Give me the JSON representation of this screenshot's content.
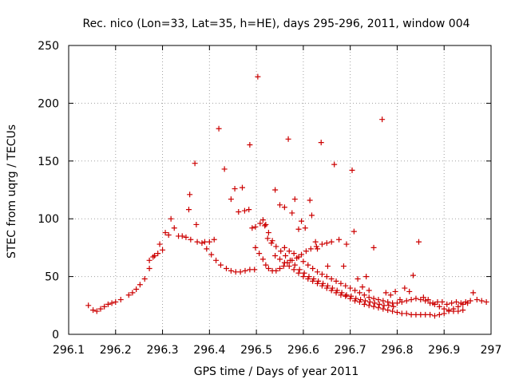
{
  "chart_data": {
    "type": "scatter",
    "title": "Rec. nico (Lon=33, Lat=35, h=HE), days 295-296, 2011, window 004",
    "xlabel": "GPS time / Days of year 2011",
    "ylabel": "STEC from uqrg / TECUs",
    "xlim": [
      296.1,
      297.0
    ],
    "ylim": [
      0,
      250
    ],
    "xticks": [
      "296.1",
      "296.2",
      "296.3",
      "296.4",
      "296.5",
      "296.6",
      "296.7",
      "296.8",
      "296.9",
      "297"
    ],
    "yticks": [
      "0",
      "50",
      "100",
      "150",
      "200",
      "250"
    ],
    "grid": true,
    "marker": "plus",
    "color": "#cc0000",
    "points": [
      [
        296.142,
        25
      ],
      [
        296.152,
        21
      ],
      [
        296.16,
        20
      ],
      [
        296.168,
        22
      ],
      [
        296.176,
        24
      ],
      [
        296.184,
        26
      ],
      [
        296.192,
        27
      ],
      [
        296.2,
        28
      ],
      [
        296.211,
        30
      ],
      [
        296.228,
        34
      ],
      [
        296.236,
        36
      ],
      [
        296.244,
        39
      ],
      [
        296.252,
        43
      ],
      [
        296.262,
        48
      ],
      [
        296.272,
        57
      ],
      [
        296.283,
        68
      ],
      [
        296.294,
        78
      ],
      [
        296.306,
        88
      ],
      [
        296.318,
        100
      ],
      [
        296.272,
        64
      ],
      [
        296.28,
        67
      ],
      [
        296.29,
        70
      ],
      [
        296.3,
        73
      ],
      [
        296.313,
        86
      ],
      [
        296.325,
        92
      ],
      [
        296.334,
        85
      ],
      [
        296.342,
        85
      ],
      [
        296.35,
        84
      ],
      [
        296.356,
        108
      ],
      [
        296.358,
        121
      ],
      [
        296.369,
        148
      ],
      [
        296.372,
        95
      ],
      [
        296.36,
        82
      ],
      [
        296.374,
        80
      ],
      [
        296.384,
        79
      ],
      [
        296.394,
        74
      ],
      [
        296.404,
        69
      ],
      [
        296.414,
        64
      ],
      [
        296.424,
        60
      ],
      [
        296.436,
        57
      ],
      [
        296.446,
        55
      ],
      [
        296.456,
        54
      ],
      [
        296.466,
        54
      ],
      [
        296.476,
        55
      ],
      [
        296.486,
        56
      ],
      [
        296.496,
        56
      ],
      [
        296.39,
        80
      ],
      [
        296.4,
        80
      ],
      [
        296.41,
        82
      ],
      [
        296.42,
        178
      ],
      [
        296.432,
        143
      ],
      [
        296.446,
        117
      ],
      [
        296.454,
        126
      ],
      [
        296.462,
        106
      ],
      [
        296.47,
        127
      ],
      [
        296.475,
        107
      ],
      [
        296.484,
        108
      ],
      [
        296.486,
        164
      ],
      [
        296.491,
        92
      ],
      [
        296.498,
        93
      ],
      [
        296.503,
        223
      ],
      [
        296.508,
        96
      ],
      [
        296.514,
        99
      ],
      [
        296.518,
        94
      ],
      [
        296.524,
        83
      ],
      [
        296.532,
        79
      ],
      [
        296.54,
        125
      ],
      [
        296.55,
        112
      ],
      [
        296.56,
        110
      ],
      [
        296.568,
        169
      ],
      [
        296.576,
        105
      ],
      [
        296.582,
        117
      ],
      [
        296.59,
        91
      ],
      [
        296.596,
        98
      ],
      [
        296.604,
        92
      ],
      [
        296.614,
        116
      ],
      [
        296.618,
        103
      ],
      [
        296.626,
        80
      ],
      [
        296.63,
        74
      ],
      [
        296.638,
        166
      ],
      [
        296.652,
        59
      ],
      [
        296.66,
        80
      ],
      [
        296.666,
        147
      ],
      [
        296.676,
        82
      ],
      [
        296.686,
        59
      ],
      [
        296.692,
        78
      ],
      [
        296.704,
        142
      ],
      [
        296.708,
        89
      ],
      [
        296.716,
        48
      ],
      [
        296.726,
        41
      ],
      [
        296.734,
        50
      ],
      [
        296.74,
        38
      ],
      [
        296.75,
        75
      ],
      [
        296.768,
        186
      ],
      [
        296.776,
        36
      ],
      [
        296.786,
        34
      ],
      [
        296.796,
        37
      ],
      [
        296.806,
        30
      ],
      [
        296.816,
        40
      ],
      [
        296.826,
        37
      ],
      [
        296.834,
        51
      ],
      [
        296.846,
        80
      ],
      [
        296.856,
        32
      ],
      [
        296.866,
        30
      ],
      [
        296.876,
        27
      ],
      [
        296.886,
        28
      ],
      [
        296.896,
        28
      ],
      [
        296.906,
        26
      ],
      [
        296.916,
        27
      ],
      [
        296.926,
        28
      ],
      [
        296.936,
        27
      ],
      [
        296.946,
        28
      ],
      [
        296.956,
        29
      ],
      [
        296.962,
        36
      ],
      [
        296.97,
        30
      ],
      [
        296.98,
        29
      ],
      [
        296.99,
        28
      ],
      [
        296.498,
        75
      ],
      [
        296.506,
        70
      ],
      [
        296.514,
        65
      ],
      [
        296.52,
        60
      ],
      [
        296.526,
        57
      ],
      [
        296.534,
        55
      ],
      [
        296.542,
        55
      ],
      [
        296.55,
        57
      ],
      [
        296.558,
        59
      ],
      [
        296.566,
        62
      ],
      [
        296.576,
        64
      ],
      [
        296.586,
        66
      ],
      [
        296.596,
        69
      ],
      [
        296.606,
        72
      ],
      [
        296.616,
        74
      ],
      [
        296.628,
        76
      ],
      [
        296.64,
        78
      ],
      [
        296.65,
        79
      ],
      [
        296.52,
        95
      ],
      [
        296.526,
        88
      ],
      [
        296.534,
        81
      ],
      [
        296.542,
        76
      ],
      [
        296.552,
        72
      ],
      [
        296.562,
        68
      ],
      [
        296.572,
        64
      ],
      [
        296.582,
        60
      ],
      [
        296.592,
        56
      ],
      [
        296.602,
        53
      ],
      [
        296.612,
        50
      ],
      [
        296.622,
        48
      ],
      [
        296.632,
        46
      ],
      [
        296.642,
        44
      ],
      [
        296.652,
        42
      ],
      [
        296.662,
        40
      ],
      [
        296.672,
        38
      ],
      [
        296.682,
        36
      ],
      [
        296.692,
        34
      ],
      [
        296.702,
        33
      ],
      [
        296.712,
        31
      ],
      [
        296.722,
        30
      ],
      [
        296.732,
        29
      ],
      [
        296.742,
        28
      ],
      [
        296.752,
        27
      ],
      [
        296.762,
        26
      ],
      [
        296.772,
        25
      ],
      [
        296.782,
        25
      ],
      [
        296.792,
        24
      ],
      [
        296.54,
        68
      ],
      [
        296.55,
        65
      ],
      [
        296.56,
        62
      ],
      [
        296.57,
        59
      ],
      [
        296.58,
        56
      ],
      [
        296.59,
        53
      ],
      [
        296.6,
        50
      ],
      [
        296.61,
        48
      ],
      [
        296.62,
        46
      ],
      [
        296.63,
        44
      ],
      [
        296.64,
        42
      ],
      [
        296.65,
        40
      ],
      [
        296.66,
        38
      ],
      [
        296.67,
        36
      ],
      [
        296.68,
        34
      ],
      [
        296.69,
        33
      ],
      [
        296.7,
        31
      ],
      [
        296.71,
        29
      ],
      [
        296.72,
        28
      ],
      [
        296.73,
        26
      ],
      [
        296.74,
        25
      ],
      [
        296.75,
        24
      ],
      [
        296.76,
        23
      ],
      [
        296.77,
        22
      ],
      [
        296.78,
        21
      ],
      [
        296.79,
        20
      ],
      [
        296.8,
        19
      ],
      [
        296.81,
        18
      ],
      [
        296.82,
        18
      ],
      [
        296.83,
        17
      ],
      [
        296.84,
        17
      ],
      [
        296.85,
        17
      ],
      [
        296.86,
        17
      ],
      [
        296.87,
        17
      ],
      [
        296.88,
        16
      ],
      [
        296.89,
        17
      ],
      [
        296.9,
        18
      ],
      [
        296.91,
        20
      ],
      [
        296.92,
        22
      ],
      [
        296.93,
        24
      ],
      [
        296.94,
        26
      ],
      [
        296.95,
        27
      ],
      [
        296.56,
        75
      ],
      [
        296.57,
        72
      ],
      [
        296.58,
        70
      ],
      [
        296.59,
        67
      ],
      [
        296.6,
        63
      ],
      [
        296.61,
        60
      ],
      [
        296.62,
        57
      ],
      [
        296.63,
        54
      ],
      [
        296.64,
        52
      ],
      [
        296.65,
        50
      ],
      [
        296.66,
        48
      ],
      [
        296.67,
        46
      ],
      [
        296.68,
        44
      ],
      [
        296.69,
        42
      ],
      [
        296.7,
        40
      ],
      [
        296.71,
        38
      ],
      [
        296.72,
        36
      ],
      [
        296.73,
        34
      ],
      [
        296.74,
        32
      ],
      [
        296.75,
        31
      ],
      [
        296.76,
        30
      ],
      [
        296.77,
        29
      ],
      [
        296.78,
        28
      ],
      [
        296.79,
        27
      ],
      [
        296.8,
        27
      ],
      [
        296.81,
        28
      ],
      [
        296.82,
        29
      ],
      [
        296.83,
        30
      ],
      [
        296.84,
        31
      ],
      [
        296.85,
        30
      ],
      [
        296.86,
        29
      ],
      [
        296.87,
        27
      ],
      [
        296.88,
        26
      ],
      [
        296.89,
        24
      ],
      [
        296.9,
        22
      ],
      [
        296.91,
        21
      ],
      [
        296.92,
        20
      ],
      [
        296.93,
        20
      ],
      [
        296.94,
        21
      ]
    ]
  }
}
